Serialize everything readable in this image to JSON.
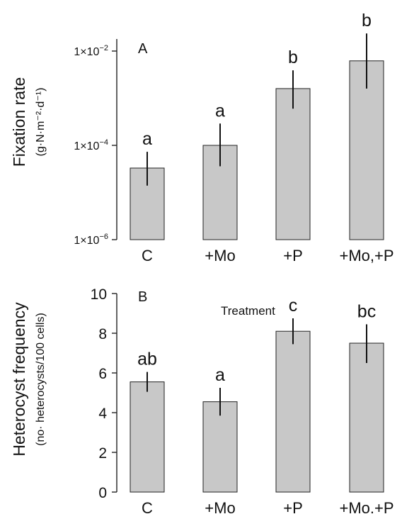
{
  "colors": {
    "bar_fill": "#c8c8c8",
    "bar_stroke": "#222222",
    "axis": "#222222"
  },
  "chart_data": [
    {
      "type": "bar",
      "panel_label": "A",
      "categories": [
        "C",
        "+Mo",
        "+P",
        "+Mo,+P"
      ],
      "values": [
        3.3e-05,
        0.0001,
        0.0016,
        0.0062
      ],
      "error_low": [
        1.4e-05,
        3.6e-05,
        0.0006,
        0.0016
      ],
      "error_high": [
        7.3e-05,
        0.00029,
        0.0039,
        0.0236
      ],
      "significance_letters": [
        "a",
        "a",
        "b",
        "b"
      ],
      "ylabel": "Fixation rate",
      "ylabel_unit": "(g·N·m⁻²·d⁻¹)",
      "yscale": "log",
      "ylim": [
        1e-06,
        0.01
      ],
      "ytick_values": [
        1e-06,
        0.0001,
        0.01
      ],
      "ytick_labels": [
        {
          "base": "1×10",
          "exp": "−6"
        },
        {
          "base": "1×10",
          "exp": "−4"
        },
        {
          "base": "1×10",
          "exp": "−2"
        }
      ],
      "annotation": "Treatment",
      "grid": false
    },
    {
      "type": "bar",
      "panel_label": "B",
      "categories": [
        "C",
        "+Mo",
        "+P",
        "+Mo.+P"
      ],
      "values": [
        5.55,
        4.55,
        8.1,
        7.5
      ],
      "error_low": [
        5.05,
        3.85,
        7.45,
        6.5
      ],
      "error_high": [
        6.05,
        5.25,
        8.75,
        8.45
      ],
      "significance_letters": [
        "ab",
        "a",
        "c",
        "bc"
      ],
      "ylabel": "Heterocyst frequency",
      "ylabel_unit": "(no· heterocysts/100 cells)",
      "yscale": "linear",
      "ylim": [
        0,
        10
      ],
      "ytick_values": [
        0,
        2,
        4,
        6,
        8,
        10
      ],
      "ytick_labels": [
        "0",
        "2",
        "4",
        "6",
        "8",
        "10"
      ],
      "grid": false
    }
  ]
}
